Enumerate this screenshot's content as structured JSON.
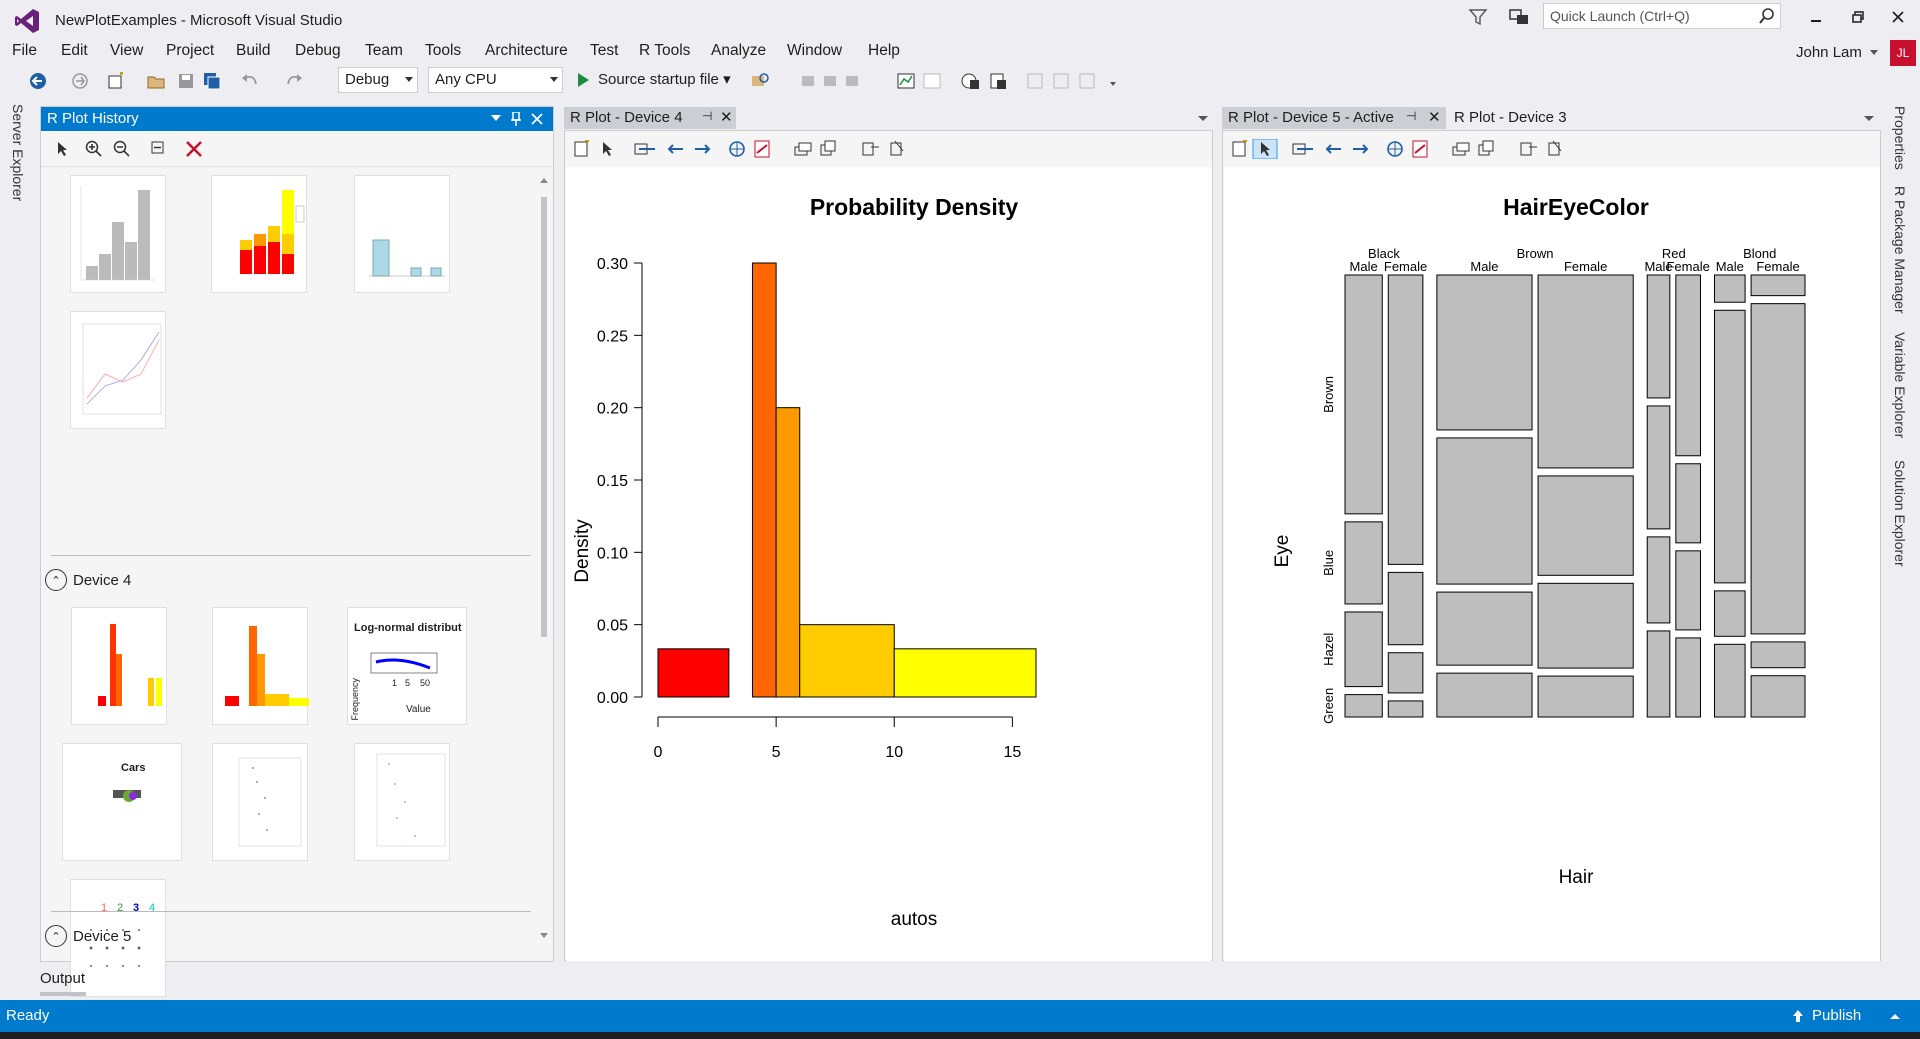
{
  "window": {
    "title": "NewPlotExamples - Microsoft Visual Studio",
    "quick_launch_placeholder": "Quick Launch (Ctrl+Q)",
    "user": "John Lam",
    "user_initials": "JL"
  },
  "menu": [
    "File",
    "Edit",
    "View",
    "Project",
    "Build",
    "Debug",
    "Team",
    "Tools",
    "Architecture",
    "Test",
    "R Tools",
    "Analyze",
    "Window",
    "Help"
  ],
  "toolbar": {
    "config": "Debug",
    "platform": "Any CPU",
    "startup": "Source startup file"
  },
  "left_rail": {
    "server_explorer": "Server Explorer"
  },
  "right_rail": [
    "Properties",
    "R Package Manager",
    "Variable Explorer",
    "Solution Explorer"
  ],
  "history": {
    "title": "R Plot History",
    "device4": "Device 4",
    "device5": "Device 5",
    "thumb_labels": {
      "lognormal": "Log-normal distribut",
      "freq": "Frequency",
      "ticks": [
        "1",
        "5",
        "50"
      ],
      "value": "Value",
      "cars": "Cars",
      "numbers": [
        "1",
        "2",
        "3",
        "4"
      ]
    }
  },
  "tabs": {
    "device4": "R Plot - Device 4",
    "device5": "R Plot - Device 5 - Active",
    "device3": "R Plot - Device 3"
  },
  "output_label": "Output",
  "status": {
    "ready": "Ready",
    "publish": "Publish"
  },
  "colors": {
    "accent": "#007acc",
    "bar_fill": "#bebebe"
  },
  "chart_data": [
    {
      "type": "bar",
      "title": "Probability Density",
      "xlabel": "autos",
      "ylabel": "Density",
      "bins": [
        {
          "x0": 0,
          "x1": 3,
          "value": 0.0333,
          "color": "#ff0000"
        },
        {
          "x0": 3,
          "x1": 4,
          "value": 0.0,
          "color": "#ff3300"
        },
        {
          "x0": 4,
          "x1": 5,
          "value": 0.3,
          "color": "#ff6600"
        },
        {
          "x0": 5,
          "x1": 6,
          "value": 0.2,
          "color": "#ff9900"
        },
        {
          "x0": 6,
          "x1": 10,
          "value": 0.05,
          "color": "#ffcc00"
        },
        {
          "x0": 10,
          "x1": 16,
          "value": 0.0333,
          "color": "#ffff00"
        }
      ],
      "xticks": [
        0,
        5,
        10,
        15
      ],
      "yticks": [
        0.0,
        0.05,
        0.1,
        0.15,
        0.2,
        0.25,
        0.3
      ],
      "ytick_labels": [
        "0.00",
        "0.05",
        "0.10",
        "0.15",
        "0.20",
        "0.25",
        "0.30"
      ],
      "xlim": [
        0,
        16
      ],
      "ylim": [
        0,
        0.3
      ]
    },
    {
      "type": "mosaic",
      "title": "HairEyeColor",
      "xlabel": "Hair",
      "ylabel": "Eye",
      "hair": [
        "Black",
        "Brown",
        "Red",
        "Blond"
      ],
      "sex": [
        "Male",
        "Female"
      ],
      "eye": [
        "Brown",
        "Blue",
        "Hazel",
        "Green"
      ],
      "counts": {
        "Black": {
          "Male": [
            32,
            11,
            10,
            3
          ],
          "Female": [
            36,
            9,
            5,
            2
          ]
        },
        "Brown": {
          "Male": [
            53,
            50,
            25,
            15
          ],
          "Female": [
            66,
            34,
            29,
            14
          ]
        },
        "Red": {
          "Male": [
            10,
            10,
            7,
            7
          ],
          "Female": [
            16,
            7,
            7,
            7
          ]
        },
        "Blond": {
          "Male": [
            3,
            30,
            5,
            8
          ],
          "Female": [
            4,
            64,
            5,
            8
          ]
        }
      }
    }
  ]
}
